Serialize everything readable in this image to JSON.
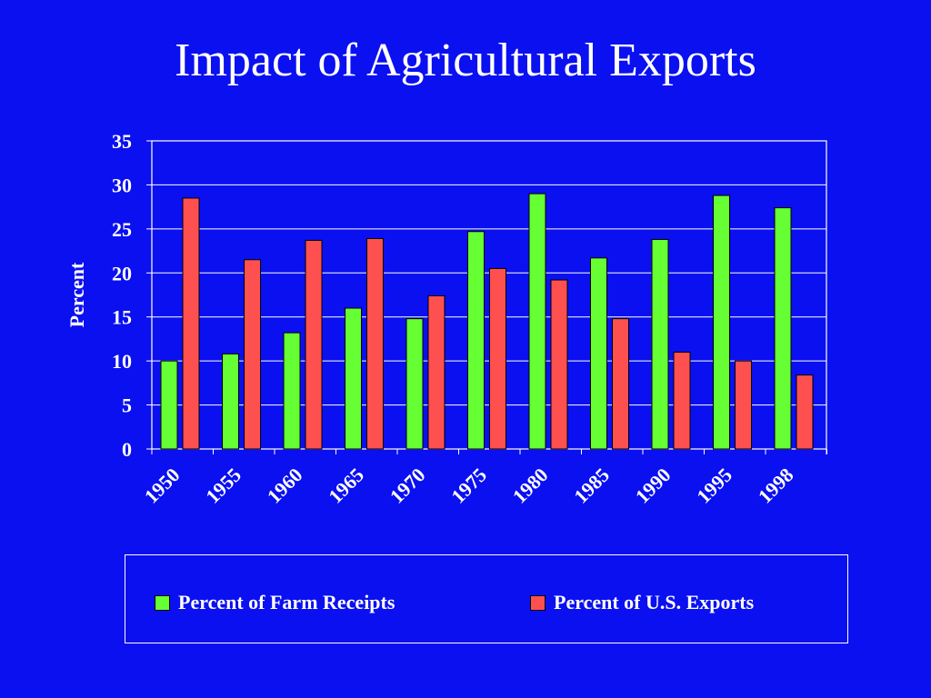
{
  "title": "Impact of Agricultural Exports",
  "chart_data": {
    "type": "bar",
    "categories": [
      "1950",
      "1955",
      "1960",
      "1965",
      "1970",
      "1975",
      "1980",
      "1985",
      "1990",
      "1995",
      "1998"
    ],
    "series": [
      {
        "name": "Percent of Farm Receipts",
        "color": "#66FF33",
        "values": [
          10,
          10.8,
          13.2,
          16,
          14.8,
          24.7,
          29,
          21.7,
          23.8,
          28.8,
          27.4
        ]
      },
      {
        "name": "Percent of U.S. Exports",
        "color": "#FF5050",
        "values": [
          28.5,
          21.5,
          23.7,
          23.9,
          17.4,
          20.5,
          19.2,
          14.8,
          11,
          10,
          8.4
        ]
      }
    ],
    "title": "Impact of Agricultural Exports",
    "xlabel": "",
    "ylabel": "Percent",
    "ylim": [
      0,
      35
    ],
    "yticks": [
      "0",
      "5",
      "10",
      "15",
      "20",
      "25",
      "30",
      "35"
    ],
    "grid": true,
    "legend_position": "bottom",
    "colors": {
      "background": "#0A10F0",
      "text": "#FFFFFF",
      "gridline": "#FFFFFF"
    }
  }
}
